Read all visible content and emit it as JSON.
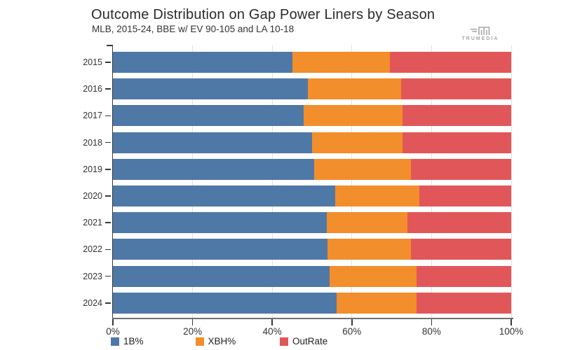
{
  "header": {
    "title": "Outcome Distribution on Gap Power Liners by Season",
    "subtitle": "MLB, 2015-24, BBE w/ EV 90-105 and LA 10-18",
    "brand": "TRUMEDIA"
  },
  "colors": {
    "blue": "#4E79A7",
    "orange": "#F28E2B",
    "red": "#E15759",
    "gridline": "#e2e2e2",
    "axis": "#6e6e6e",
    "text": "#333333"
  },
  "chart_data": {
    "type": "bar",
    "orientation": "horizontal",
    "stacked": true,
    "grid": true,
    "legend_position": "bottom",
    "title": "Outcome Distribution on Gap Power Liners by Season",
    "subtitle": "MLB, 2015-24, BBE w/ EV 90-105 and LA 10-18",
    "xlabel": "",
    "ylabel": "",
    "xlim": [
      0,
      100
    ],
    "x_ticks": [
      {
        "value": 0,
        "label": "0%"
      },
      {
        "value": 20,
        "label": "20%"
      },
      {
        "value": 40,
        "label": "40%"
      },
      {
        "value": 60,
        "label": "60%"
      },
      {
        "value": 80,
        "label": "80%"
      },
      {
        "value": 100,
        "label": "100%"
      }
    ],
    "categories": [
      "2015",
      "2016",
      "2017",
      "2018",
      "2019",
      "2020",
      "2021",
      "2022",
      "2023",
      "2024"
    ],
    "series": [
      {
        "name": "1B%",
        "color": "#4E79A7",
        "values": [
          45.0,
          48.9,
          47.9,
          50.0,
          50.6,
          55.8,
          53.7,
          53.9,
          54.4,
          56.1
        ]
      },
      {
        "name": "XBH%",
        "color": "#F28E2B",
        "values": [
          24.6,
          23.5,
          24.8,
          22.7,
          24.3,
          21.2,
          20.3,
          21.0,
          21.8,
          20.1
        ]
      },
      {
        "name": "OutRate",
        "color": "#E15759",
        "values": [
          30.4,
          27.6,
          27.3,
          27.3,
          25.1,
          23.0,
          26.0,
          25.1,
          23.8,
          23.8
        ]
      }
    ]
  }
}
